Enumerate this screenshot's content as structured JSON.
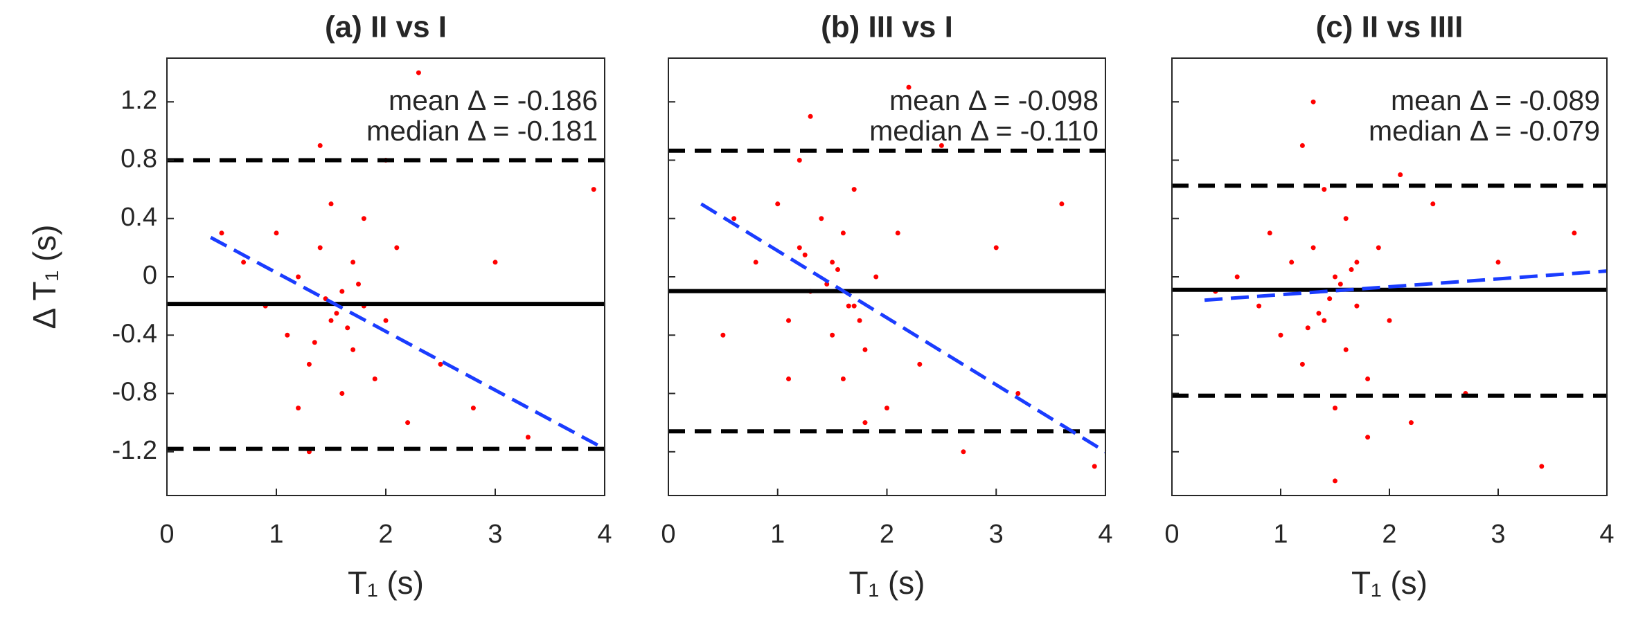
{
  "chart_data": [
    {
      "type": "scatter",
      "title": "(a) II vs I",
      "xlabel": "T₁ (s)",
      "ylabel": "Δ T₁ (s)",
      "show_ytick_labels": true,
      "annotations": [
        "mean Δ = -0.186",
        "median Δ = -0.181"
      ],
      "color": "#ff0000",
      "xlim": [
        0,
        4
      ],
      "ylim": [
        -1.5,
        1.5
      ],
      "xticks": [
        0,
        1,
        2,
        3,
        4
      ],
      "yticks": [
        -1.2,
        -0.8,
        -0.4,
        0,
        0.4,
        0.8,
        1.2
      ],
      "x": [
        0.7,
        0.9,
        1.0,
        1.1,
        1.2,
        1.3,
        1.4,
        1.5,
        1.5,
        1.6,
        1.6,
        1.7,
        1.7,
        1.8,
        1.8,
        1.9,
        2.0,
        2.1,
        2.2,
        2.3,
        2.5,
        2.8,
        3.0,
        3.3,
        3.9,
        1.3,
        1.4,
        0.5,
        1.2,
        2.0,
        1.55,
        1.65,
        1.45,
        1.75,
        1.35
      ],
      "y": [
        0.1,
        -0.2,
        0.3,
        -0.4,
        0.0,
        -0.6,
        0.2,
        -0.3,
        0.5,
        -0.1,
        -0.8,
        0.1,
        -0.5,
        -0.2,
        0.4,
        -0.7,
        -0.3,
        0.2,
        -1.0,
        1.4,
        -0.6,
        -0.9,
        0.1,
        -1.1,
        0.6,
        -1.2,
        0.9,
        0.3,
        -0.9,
        0.8,
        -0.25,
        -0.35,
        -0.15,
        -0.05,
        -0.45
      ],
      "lines": [
        {
          "style": "solid",
          "y": -0.186
        },
        {
          "style": "dashed",
          "y": 0.8
        },
        {
          "style": "dashed",
          "y": -1.18
        }
      ],
      "fit": {
        "x": [
          0.4,
          4
        ],
        "y": [
          0.27,
          -1.18
        ],
        "color": "#1a3cff"
      }
    },
    {
      "type": "scatter",
      "title": "(b) III vs I",
      "xlabel": "T₁ (s)",
      "show_ytick_labels": false,
      "annotations": [
        "mean Δ = -0.098",
        "median Δ = -0.110"
      ],
      "color": "#ff0000",
      "xlim": [
        0,
        4
      ],
      "ylim": [
        -1.5,
        1.5
      ],
      "xticks": [
        0,
        1,
        2,
        3,
        4
      ],
      "yticks": [
        -1.2,
        -0.8,
        -0.4,
        0,
        0.4,
        0.8,
        1.2
      ],
      "x": [
        0.6,
        0.8,
        1.0,
        1.1,
        1.2,
        1.2,
        1.3,
        1.4,
        1.5,
        1.5,
        1.6,
        1.6,
        1.7,
        1.7,
        1.8,
        1.9,
        2.0,
        2.1,
        2.3,
        2.5,
        2.7,
        3.0,
        3.2,
        3.6,
        3.9,
        1.3,
        1.1,
        0.5,
        1.8,
        2.2,
        1.45,
        1.65,
        1.25,
        1.75,
        1.55
      ],
      "y": [
        0.4,
        0.1,
        0.5,
        -0.3,
        0.2,
        0.8,
        -0.1,
        0.4,
        -0.4,
        0.1,
        -0.7,
        0.3,
        -0.2,
        0.6,
        -0.5,
        0.0,
        -0.9,
        0.3,
        -0.6,
        0.9,
        -1.2,
        0.2,
        -0.8,
        0.5,
        -1.3,
        1.1,
        -0.7,
        -0.4,
        -1.0,
        1.3,
        -0.05,
        -0.2,
        0.15,
        -0.3,
        0.05
      ],
      "lines": [
        {
          "style": "solid",
          "y": -0.098
        },
        {
          "style": "dashed",
          "y": 0.865
        },
        {
          "style": "dashed",
          "y": -1.06
        }
      ],
      "fit": {
        "x": [
          0.3,
          4
        ],
        "y": [
          0.5,
          -1.2
        ],
        "color": "#1a3cff"
      }
    },
    {
      "type": "scatter",
      "title": "(c) II vs IIII",
      "xlabel": "T₁ (s)",
      "show_ytick_labels": false,
      "annotations": [
        "mean Δ = -0.089",
        "median Δ = -0.079"
      ],
      "color": "#ff0000",
      "xlim": [
        0,
        4
      ],
      "ylim": [
        -1.5,
        1.5
      ],
      "xticks": [
        0,
        1,
        2,
        3,
        4
      ],
      "yticks": [
        -1.2,
        -0.8,
        -0.4,
        0,
        0.4,
        0.8,
        1.2
      ],
      "x": [
        0.6,
        0.8,
        0.9,
        1.0,
        1.1,
        1.2,
        1.3,
        1.4,
        1.4,
        1.5,
        1.5,
        1.6,
        1.6,
        1.7,
        1.7,
        1.8,
        1.9,
        2.0,
        2.2,
        2.4,
        2.7,
        3.0,
        3.4,
        3.7,
        1.3,
        1.5,
        1.2,
        0.4,
        1.8,
        2.1,
        1.45,
        1.55,
        1.35,
        1.65,
        1.25
      ],
      "y": [
        0.0,
        -0.2,
        0.3,
        -0.4,
        0.1,
        -0.6,
        0.2,
        -0.3,
        0.6,
        -0.9,
        0.0,
        -0.5,
        0.4,
        -0.2,
        0.1,
        -0.7,
        0.2,
        -0.3,
        -1.0,
        0.5,
        -0.8,
        0.1,
        -1.3,
        0.3,
        1.2,
        -1.4,
        0.9,
        -0.1,
        -1.1,
        0.7,
        -0.15,
        -0.05,
        -0.25,
        0.05,
        -0.35
      ],
      "lines": [
        {
          "style": "solid",
          "y": -0.089
        },
        {
          "style": "dashed",
          "y": 0.625
        },
        {
          "style": "dashed",
          "y": -0.815
        }
      ],
      "fit": {
        "x": [
          0.3,
          4
        ],
        "y": [
          -0.16,
          0.04
        ],
        "color": "#1a3cff"
      }
    }
  ]
}
